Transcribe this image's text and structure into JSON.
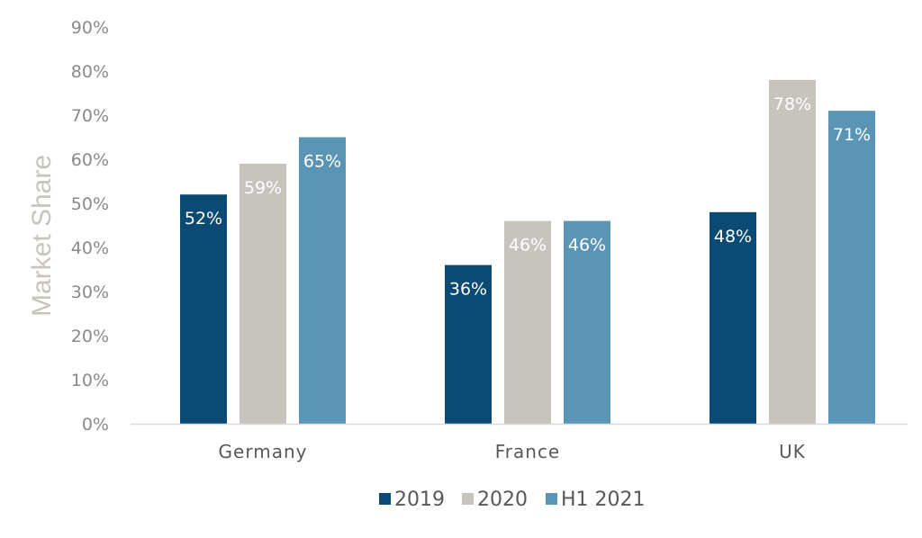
{
  "chart_data": {
    "type": "bar",
    "categories": [
      "Germany",
      "France",
      "UK"
    ],
    "series": [
      {
        "name": "2019",
        "values": [
          52,
          36,
          48
        ],
        "labels": [
          "52%",
          "36%",
          "48%"
        ],
        "color": "#0a4a73"
      },
      {
        "name": "2020",
        "values": [
          59,
          46,
          78
        ],
        "labels": [
          "59%",
          "46%",
          "78%"
        ],
        "color": "#c7c4be"
      },
      {
        "name": "H1 2021",
        "values": [
          65,
          46,
          71
        ],
        "labels": [
          "65%",
          "46%",
          "71%"
        ],
        "color": "#5b95b6"
      }
    ],
    "ylabel": "Market Share",
    "ylim": [
      0,
      90
    ],
    "yticks": [
      0,
      10,
      20,
      30,
      40,
      50,
      60,
      70,
      80,
      90
    ],
    "ytick_labels": [
      "0%",
      "10%",
      "20%",
      "30%",
      "40%",
      "50%",
      "60%",
      "70%",
      "80%",
      "90%"
    ],
    "grid": false,
    "legend_position": "bottom",
    "axis_color": "#d9d9d9"
  }
}
